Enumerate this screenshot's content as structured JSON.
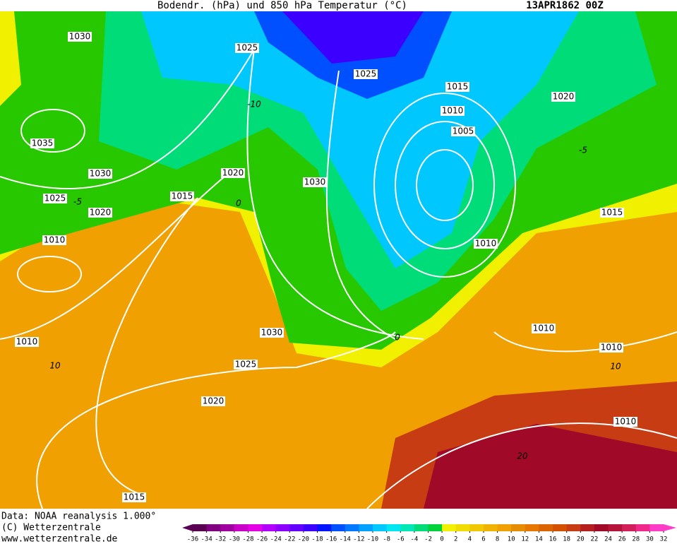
{
  "header": {
    "title": "Bodendr. (hPa) und 850 hPa Temperatur (°C)",
    "date": "13APR1862 00Z"
  },
  "isobar_labels": [
    "1030",
    "1025",
    "1025",
    "1015",
    "1020",
    "1010",
    "1005",
    "1035",
    "1030",
    "1020",
    "1030",
    "1025",
    "1020",
    "1015",
    "1015",
    "1010",
    "1010",
    "1010",
    "1030",
    "1010",
    "1010",
    "1025",
    "1020",
    "1010",
    "1015"
  ],
  "temperature_labels": [
    "-10",
    "0",
    "10",
    "10",
    "20",
    "0",
    "-5",
    "-5"
  ],
  "footer": [
    "Data: NOAA reanalysis 1.000°",
    "(C) Wetterzentrale",
    "www.wetterzentrale.de"
  ],
  "colorbar": {
    "ticks": [
      -36,
      -34,
      -32,
      -30,
      -28,
      -26,
      -24,
      -22,
      -20,
      -18,
      -16,
      -14,
      -12,
      -10,
      -8,
      -6,
      -4,
      -2,
      0,
      2,
      4,
      6,
      8,
      10,
      12,
      14,
      16,
      18,
      20,
      22,
      24,
      26,
      28,
      30,
      32
    ],
    "colors": [
      "#5a0050",
      "#800080",
      "#a000a0",
      "#c800c8",
      "#e600e6",
      "#b400ff",
      "#8c00ff",
      "#6400ff",
      "#3c00ff",
      "#0014ff",
      "#0050ff",
      "#0078ff",
      "#00a0ff",
      "#00c8ff",
      "#00e6f0",
      "#00e6b4",
      "#00dc78",
      "#00d23c",
      "#f0f000",
      "#f0dc00",
      "#f0c800",
      "#f0b400",
      "#f0a000",
      "#e68c00",
      "#e67800",
      "#dc6400",
      "#d25000",
      "#c83c14",
      "#b41e1e",
      "#a00a28",
      "#b4143c",
      "#d21e5a",
      "#f0288c",
      "#ff3cc8"
    ]
  }
}
